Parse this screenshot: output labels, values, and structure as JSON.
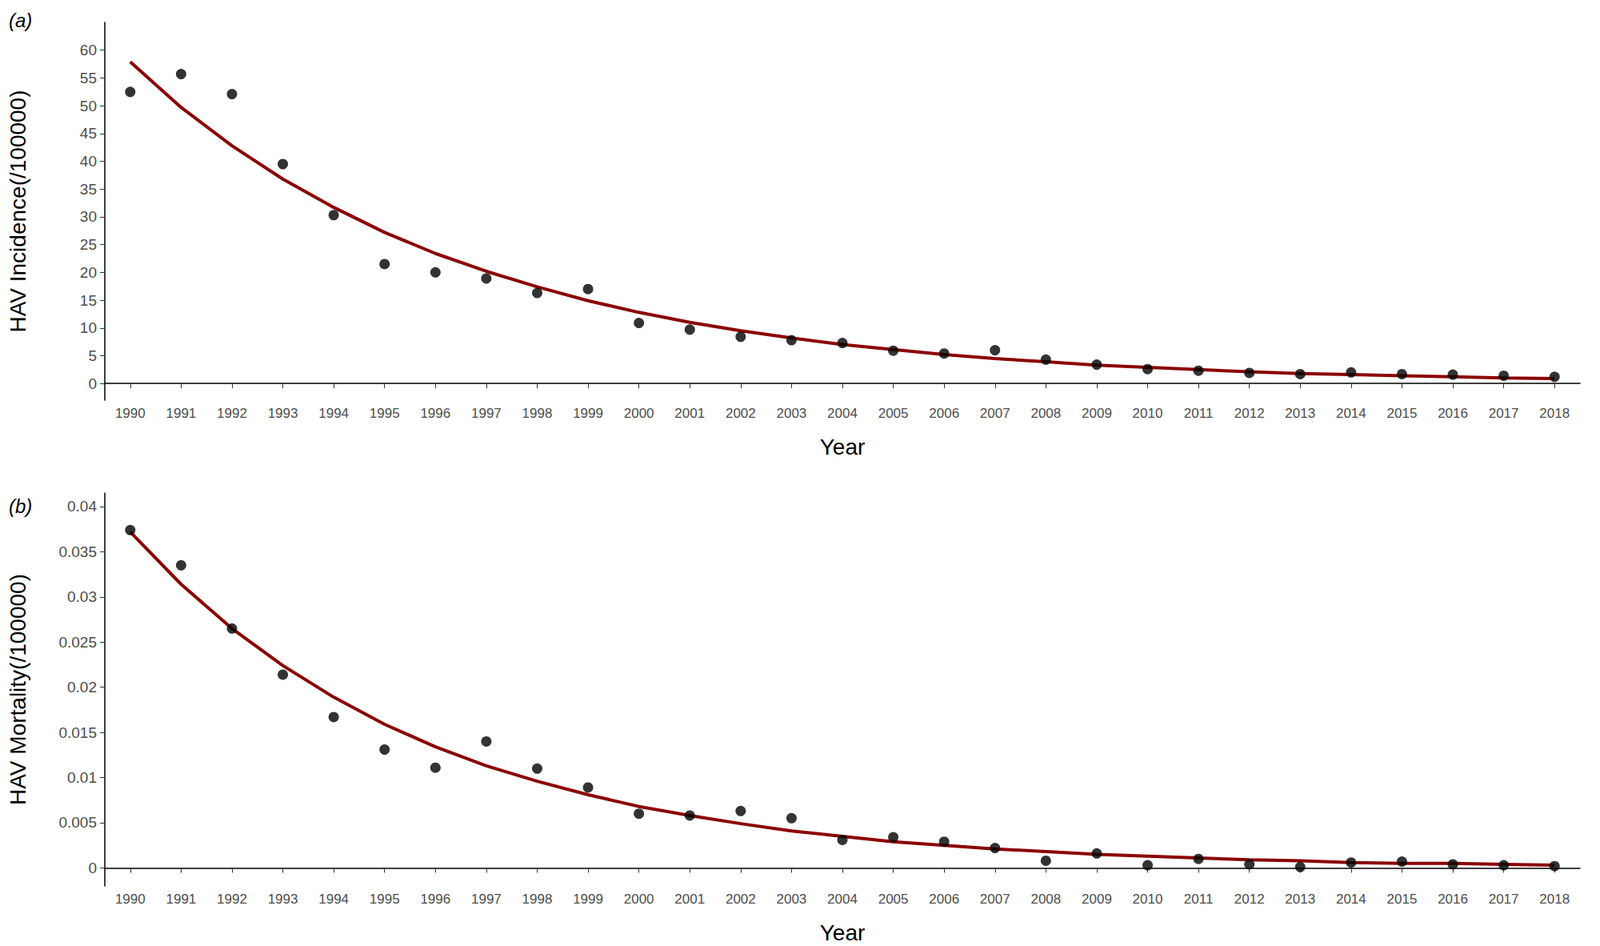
{
  "chart_data": [
    {
      "type": "scatter",
      "title": "(a)",
      "x_label": "Year",
      "y_label": "HAV Incidence(/100000)",
      "categories": [
        "1990",
        "1991",
        "1992",
        "1993",
        "1994",
        "1995",
        "1996",
        "1997",
        "1998",
        "1999",
        "2000",
        "2001",
        "2002",
        "2003",
        "2004",
        "2005",
        "2006",
        "2007",
        "2008",
        "2009",
        "2010",
        "2011",
        "2012",
        "2013",
        "2014",
        "2015",
        "2016",
        "2017",
        "2018"
      ],
      "series": [
        {
          "type": "scatter",
          "color": "#000000",
          "marker": "circle",
          "values": [
            52.5,
            55.7,
            52.1,
            39.5,
            30.3,
            21.5,
            20.0,
            18.9,
            16.3,
            17.0,
            10.9,
            9.7,
            8.4,
            7.8,
            7.3,
            5.9,
            5.4,
            6.0,
            4.3,
            3.4,
            2.6,
            2.3,
            1.9,
            1.7,
            2.0,
            1.7,
            1.6,
            1.4,
            1.2
          ]
        },
        {
          "type": "line",
          "color": "#8b0000",
          "line_style": "solid",
          "values": [
            57.9,
            49.7,
            42.8,
            36.8,
            31.7,
            27.2,
            23.4,
            20.2,
            17.4,
            14.9,
            12.8,
            11.0,
            9.5,
            8.2,
            7.0,
            6.1,
            5.2,
            4.5,
            3.9,
            3.3,
            2.9,
            2.5,
            2.1,
            1.8,
            1.6,
            1.4,
            1.2,
            1.0,
            0.9
          ]
        }
      ],
      "ylim": [
        -3,
        65
      ],
      "yticks": [
        0,
        5,
        10,
        15,
        20,
        25,
        30,
        35,
        40,
        45,
        50,
        55,
        60
      ],
      "grid": false
    },
    {
      "type": "scatter",
      "title": "(b)",
      "x_label": "Year",
      "y_label": "HAV Mortality(/100000)",
      "categories": [
        "1990",
        "1991",
        "1992",
        "1993",
        "1994",
        "1995",
        "1996",
        "1997",
        "1998",
        "1999",
        "2000",
        "2001",
        "2002",
        "2003",
        "2004",
        "2005",
        "2006",
        "2007",
        "2008",
        "2009",
        "2010",
        "2011",
        "2012",
        "2013",
        "2014",
        "2015",
        "2016",
        "2017",
        "2018"
      ],
      "series": [
        {
          "type": "scatter",
          "color": "#000000",
          "marker": "circle",
          "values": [
            0.0374,
            0.0335,
            0.0265,
            0.0214,
            0.0167,
            0.0131,
            0.0111,
            0.014,
            0.011,
            0.0089,
            0.006,
            0.0058,
            0.0063,
            0.0055,
            0.0031,
            0.0034,
            0.0029,
            0.0022,
            0.0008,
            0.0016,
            0.0003,
            0.001,
            0.0004,
            0.0001,
            0.0006,
            0.0007,
            0.0004,
            0.0003,
            0.0002
          ]
        },
        {
          "type": "line",
          "color": "#8b0000",
          "line_style": "solid",
          "values": [
            0.0372,
            0.0314,
            0.0265,
            0.0224,
            0.0189,
            0.0159,
            0.0134,
            0.0113,
            0.0096,
            0.0081,
            0.0068,
            0.0058,
            0.0049,
            0.0041,
            0.0035,
            0.0029,
            0.0025,
            0.0021,
            0.0018,
            0.0015,
            0.0013,
            0.0011,
            0.0009,
            0.0008,
            0.0006,
            0.0005,
            0.0005,
            0.0004,
            0.0003
          ]
        }
      ],
      "ylim": [
        -0.002,
        0.0415
      ],
      "yticks": [
        0,
        0.005,
        0.01,
        0.015,
        0.02,
        0.025,
        0.03,
        0.035,
        0.04
      ],
      "grid": false
    }
  ]
}
